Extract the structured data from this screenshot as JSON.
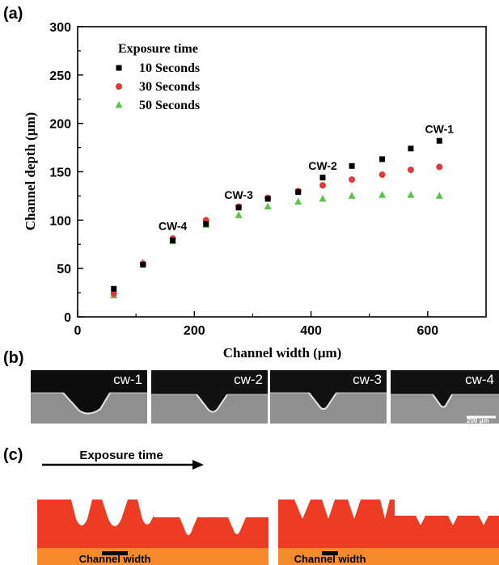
{
  "panel_labels": {
    "a": "(a)",
    "b": "(b)",
    "c": "(c)"
  },
  "chart_data": {
    "type": "scatter",
    "title": "",
    "xlabel": "Channel width (μm)",
    "ylabel": "Channel depth (μm)",
    "xlim": [
      0,
      700
    ],
    "ylim": [
      0,
      300
    ],
    "xticks": [
      0,
      200,
      400,
      600
    ],
    "yticks": [
      0,
      50,
      100,
      150,
      200,
      250,
      300
    ],
    "grid": false,
    "legend_title": "Exposure time",
    "legend_position": "top-left",
    "series": [
      {
        "name": "10 Seconds",
        "marker": "square",
        "color": "#000000",
        "x": [
          62,
          112,
          163,
          220,
          276,
          326,
          378,
          420,
          470,
          522,
          571,
          620
        ],
        "y": [
          29,
          54,
          79,
          96,
          113,
          122,
          129,
          144,
          156,
          163,
          174,
          182
        ]
      },
      {
        "name": "30 Seconds",
        "marker": "circle",
        "color": "#e03a3a",
        "x": [
          62,
          112,
          163,
          220,
          276,
          326,
          378,
          420,
          470,
          522,
          571,
          620
        ],
        "y": [
          24,
          55,
          81,
          100,
          114,
          123,
          130,
          136,
          142,
          147,
          152,
          155
        ]
      },
      {
        "name": "50 Seconds",
        "marker": "triangle",
        "color": "#5cc44a",
        "x": [
          62,
          112,
          163,
          220,
          276,
          326,
          378,
          420,
          470,
          522,
          571,
          620
        ],
        "y": [
          22,
          56,
          78,
          95,
          105,
          114,
          119,
          122,
          125,
          126,
          126,
          125
        ]
      }
    ],
    "annotations": [
      {
        "text": "CW-1",
        "x": 620,
        "y": 190
      },
      {
        "text": "CW-2",
        "x": 420,
        "y": 152
      },
      {
        "text": "CW-3",
        "x": 276,
        "y": 122
      },
      {
        "text": "CW-4",
        "x": 163,
        "y": 90
      }
    ]
  },
  "sem_images": [
    {
      "label": "cw-1"
    },
    {
      "label": "cw-2"
    },
    {
      "label": "cw-3"
    },
    {
      "label": "cw-4"
    }
  ],
  "scale_bar_label": "200 μm",
  "schematic": {
    "exposure_label": "Exposure time",
    "channel_width_labels": [
      "Channel width",
      "Channel width"
    ],
    "colors": {
      "resist": "#ee3b24",
      "substrate": "#f58a2b"
    }
  }
}
